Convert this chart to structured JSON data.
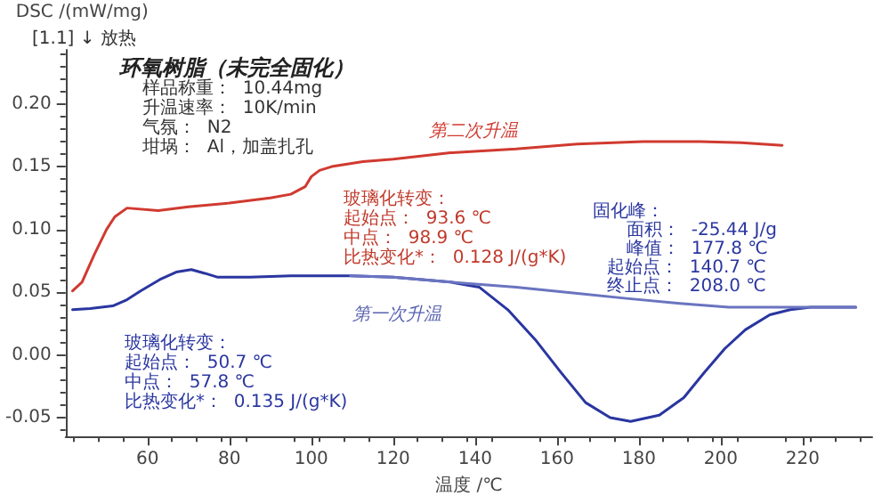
{
  "chart_data": {
    "type": "line",
    "title": "环氧树脂（未完全固化）",
    "xlabel": "温度 /℃",
    "ylabel": "DSC /(mW/mg)",
    "annotations": [
      "[1.1] ↓ 放热",
      "样品称重：  10.44mg",
      "升温速率：  10K/min",
      "气氛：  N2",
      "坩埚：  Al，加盖扎孔",
      "第二次升温",
      "玻璃化转变：",
      "起始点：  93.6 ℃",
      "中点：  98.9 ℃",
      "比热变化*：  0.128 J/(g*K)",
      "第一次升温",
      "玻璃化转变：",
      "起始点：  50.7 ℃",
      "中点：  57.8 ℃",
      "比热变化*：  0.135 J/(g*K)",
      "固化峰：",
      "面积：  -25.44 J/g",
      "峰值：  177.8 ℃",
      "起始点：  140.7 ℃",
      "终止点：  208.0 ℃"
    ],
    "xlim": [
      40,
      237
    ],
    "xticks": [
      60,
      80,
      100,
      120,
      140,
      160,
      180,
      200,
      220
    ],
    "ylim": [
      -0.065,
      0.243
    ],
    "yticks": [
      {
        "value": -0.05,
        "label": "-0.05"
      },
      {
        "value": 0,
        "label": "0.00"
      },
      0.05,
      {
        "value": 0.1,
        "label": "0.10"
      },
      0.15,
      {
        "value": 0.2,
        "label": "0.20"
      }
    ],
    "grid": false,
    "marker": "none",
    "line_style": "solid",
    "series": [
      {
        "color": "#d03a30",
        "x": [
          41.7,
          44,
          47,
          50,
          52,
          55,
          62.6,
          70,
          80,
          90,
          95,
          98.5,
          100,
          102,
          105,
          112.6,
          120,
          134,
          150,
          165,
          181,
          195,
          205,
          215
        ],
        "values": [
          0.051,
          0.058,
          0.08,
          0.1,
          0.11,
          0.117,
          0.115,
          0.118,
          0.121,
          0.125,
          0.128,
          0.134,
          0.142,
          0.147,
          0.15,
          0.154,
          0.156,
          0.161,
          0.164,
          0.168,
          0.17,
          0.17,
          0.169,
          0.167
        ]
      },
      {
        "color": "#2a36a0",
        "x": [
          41.7,
          46,
          51.5,
          55,
          58.3,
          63,
          67,
          70.7,
          74,
          77,
          85,
          95,
          109.6,
          120,
          134,
          141,
          148,
          155,
          161,
          167,
          173,
          178,
          185,
          191,
          196,
          201,
          206,
          212,
          217,
          222,
          227,
          233
        ],
        "values": [
          0.036,
          0.037,
          0.039,
          0.044,
          0.051,
          0.06,
          0.066,
          0.068,
          0.065,
          0.062,
          0.062,
          0.063,
          0.063,
          0.062,
          0.058,
          0.054,
          0.036,
          0.011,
          -0.014,
          -0.038,
          -0.05,
          -0.053,
          -0.048,
          -0.034,
          -0.014,
          0.005,
          0.02,
          0.032,
          0.036,
          0.038,
          0.038,
          0.038
        ]
      },
      {
        "color": "#6a74c0",
        "x": [
          109.6,
          120,
          134,
          150,
          165,
          177,
          190,
          202,
          215,
          233
        ],
        "values": [
          0.063,
          0.062,
          0.058,
          0.054,
          0.049,
          0.045,
          0.041,
          0.038,
          0.038,
          0.038
        ]
      }
    ]
  }
}
